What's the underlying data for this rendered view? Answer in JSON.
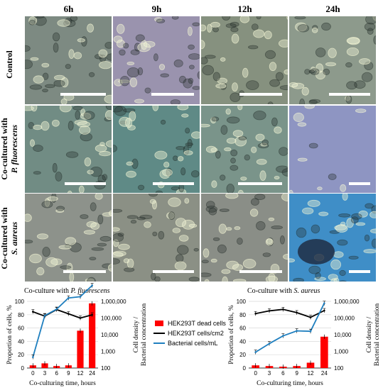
{
  "columns": [
    "6h",
    "9h",
    "12h",
    "24h"
  ],
  "rows": [
    {
      "label_lines": [
        "Control"
      ]
    },
    {
      "label_lines": [
        "Co-cultured with",
        "P. fluorescens"
      ]
    },
    {
      "label_lines": [
        "Co-cultured with",
        "S. aureus"
      ]
    }
  ],
  "micrographs": [
    [
      "#7d8a82",
      "#9a93ae",
      "#86917f",
      "#8d9a8c"
    ],
    [
      "#718c84",
      "#5f8a86",
      "#7a948a",
      "#8e95c2"
    ],
    [
      "#8d928b",
      "#8b9085",
      "#8a8e87",
      "#3f8ec7"
    ]
  ],
  "charts": [
    {
      "title_prefix": "Co-culture with ",
      "title_species": "P. fluorescens",
      "chart_data": {
        "type": "bar+line",
        "categories": [
          "0",
          "3",
          "6",
          "9",
          "12",
          "24"
        ],
        "xlabel": "Co-culturing time, hours",
        "ylabel": "Proportion of cells, %",
        "y2label_lines": [
          "Cell density /",
          "Bacterial concentration"
        ],
        "ylim": [
          0,
          100
        ],
        "yticks": [
          "0",
          "20",
          "40",
          "60",
          "80",
          "100"
        ],
        "y2ticks": [
          "100",
          "1,000",
          "10,000",
          "100,000",
          "1,000,000"
        ],
        "y2_log_range": [
          100,
          1000000
        ],
        "series": [
          {
            "name": "HEK293T dead cells",
            "kind": "bar",
            "axis": "left",
            "color": "#ff0000",
            "values": [
              4,
              7,
              3,
              4,
              56,
              97
            ]
          },
          {
            "name": "HEK293T cells/cm2",
            "kind": "line",
            "axis": "right",
            "color": "#000000",
            "values": [
              240000,
              130000,
              320000,
              180000,
              100000,
              155000
            ]
          },
          {
            "name": "Bacterial cells/mL",
            "kind": "line",
            "axis": "right",
            "color": "#1f7fbf",
            "values": [
              450,
              140000,
              340000,
              1600000,
              1900000,
              9000000
            ]
          }
        ]
      }
    },
    {
      "title_prefix": "Co-culture with ",
      "title_species": "S. aureus",
      "chart_data": {
        "type": "bar+line",
        "categories": [
          "0",
          "3",
          "6",
          "9",
          "12",
          "24"
        ],
        "xlabel": "Co-culturing time, hours",
        "ylabel": "Proportion of cells, %",
        "y2label_lines": [
          "Cell density /",
          "Bacterial concentration"
        ],
        "ylim": [
          0,
          100
        ],
        "yticks": [
          "0",
          "20",
          "40",
          "60",
          "80",
          "100"
        ],
        "y2ticks": [
          "100",
          "1,000",
          "10,000",
          "100,000",
          "1,000,000"
        ],
        "y2_log_range": [
          100,
          1000000
        ],
        "series": [
          {
            "name": "HEK293T dead cells",
            "kind": "bar",
            "axis": "left",
            "color": "#ff0000",
            "values": [
              4,
              3,
              2,
              3,
              8,
              47
            ]
          },
          {
            "name": "HEK293T cells/cm2",
            "kind": "line",
            "axis": "right",
            "color": "#000000",
            "values": [
              185000,
              270000,
              330000,
              210000,
              110000,
              280000
            ]
          },
          {
            "name": "Bacterial cells/mL",
            "kind": "line",
            "axis": "right",
            "color": "#1f7fbf",
            "values": [
              900,
              2900,
              8500,
              17000,
              16000,
              770000
            ]
          }
        ]
      }
    }
  ],
  "legend": [
    {
      "label": "HEK293T dead cells",
      "kind": "bar",
      "color": "#ff0000"
    },
    {
      "label": "HEK293T cells/cm2",
      "kind": "line",
      "color": "#000000"
    },
    {
      "label": "Bacterial cells/mL",
      "kind": "line",
      "color": "#1f7fbf"
    }
  ]
}
